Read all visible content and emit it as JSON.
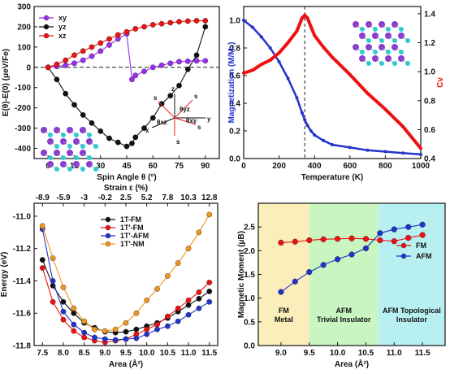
{
  "chart_data": [
    {
      "type": "line",
      "xlabel": "Spin Angle θ (°)",
      "ylabel": "E(θ)-E(0) (μeV/Fe)",
      "xlim": [
        -8,
        98
      ],
      "ylim": [
        -450,
        300
      ],
      "xticks": [
        0,
        15,
        30,
        45,
        60,
        75,
        90
      ],
      "yticks": [
        -400,
        -300,
        -200,
        -100,
        0,
        100,
        200,
        300
      ],
      "reference_line": 0,
      "legend_position": "top-left",
      "series": [
        {
          "name": "xy",
          "color": "#9b2ff0",
          "x": [
            0,
            5,
            10,
            15,
            20,
            25,
            30,
            35,
            40,
            45,
            48,
            50,
            55,
            60,
            65,
            70,
            75,
            80,
            85,
            90
          ],
          "y": [
            0,
            4,
            10,
            20,
            35,
            55,
            80,
            110,
            140,
            165,
            -60,
            -40,
            -20,
            0,
            10,
            20,
            28,
            30,
            32,
            32
          ]
        },
        {
          "name": "yz",
          "color": "#111111",
          "x": [
            0,
            5,
            10,
            15,
            20,
            25,
            30,
            35,
            40,
            45,
            48,
            50,
            55,
            60,
            65,
            70,
            75,
            80,
            85,
            90
          ],
          "y": [
            0,
            -60,
            -130,
            -185,
            -235,
            -275,
            -315,
            -350,
            -370,
            -390,
            -375,
            -345,
            -300,
            -250,
            -180,
            -140,
            -90,
            -10,
            60,
            200
          ]
        },
        {
          "name": "xz",
          "color": "#ee1111",
          "x": [
            0,
            5,
            10,
            15,
            20,
            25,
            30,
            35,
            40,
            45,
            50,
            55,
            60,
            65,
            70,
            75,
            80,
            85,
            90
          ],
          "y": [
            0,
            15,
            35,
            60,
            80,
            100,
            120,
            140,
            160,
            175,
            190,
            200,
            210,
            215,
            220,
            225,
            228,
            230,
            230
          ]
        }
      ],
      "inset_labels": [
        "z",
        "s",
        "s",
        "s",
        "s",
        "θyz",
        "θxz",
        "θxy",
        "x",
        "y"
      ]
    },
    {
      "type": "line",
      "xlabel": "Temperature (K)",
      "ylabel": "Magnetization (M/M₀)",
      "ylabel_right": "Cv",
      "xlim": [
        0,
        1000
      ],
      "ylim": [
        0,
        1.1
      ],
      "ylim_right": [
        0.4,
        1.45
      ],
      "xticks": [
        0,
        200,
        400,
        600,
        800,
        1000
      ],
      "yticks": [
        0.0,
        0.2,
        0.4,
        0.6,
        0.8,
        1.0
      ],
      "yticks_right": [
        0.4,
        0.6,
        0.8,
        1.0,
        1.2,
        1.4
      ],
      "vline_x": 345,
      "series": [
        {
          "name": "Magnetization",
          "color": "#2233cc",
          "axis": "left",
          "x": [
            0,
            50,
            100,
            150,
            200,
            250,
            300,
            330,
            345,
            360,
            380,
            400,
            450,
            500,
            600,
            700,
            800,
            900,
            1000
          ],
          "y": [
            1.0,
            0.95,
            0.88,
            0.8,
            0.7,
            0.58,
            0.44,
            0.33,
            0.28,
            0.24,
            0.2,
            0.17,
            0.13,
            0.1,
            0.08,
            0.06,
            0.05,
            0.04,
            0.03
          ]
        },
        {
          "name": "Cv",
          "color": "#ee1111",
          "axis": "right",
          "x": [
            0,
            50,
            100,
            150,
            200,
            250,
            300,
            330,
            345,
            360,
            380,
            400,
            450,
            500,
            600,
            700,
            800,
            900,
            1000
          ],
          "y": [
            0.99,
            1.01,
            1.05,
            1.08,
            1.13,
            1.2,
            1.28,
            1.37,
            1.39,
            1.37,
            1.31,
            1.25,
            1.17,
            1.1,
            0.98,
            0.85,
            0.74,
            0.62,
            0.47
          ]
        }
      ]
    },
    {
      "type": "line",
      "xlabel": "Area (Å²)",
      "ylabel": "Energy (eV)",
      "xlabel_top": "Strain ε (%)",
      "xlim": [
        7.3,
        11.7
      ],
      "ylim": [
        -11.8,
        -10.92
      ],
      "xticks": [
        7.5,
        8.0,
        8.5,
        9.0,
        9.5,
        10.0,
        10.5,
        11.0,
        11.5
      ],
      "yticks": [
        -11.8,
        -11.6,
        -11.4,
        -11.2,
        -11.0
      ],
      "xticks_top": [
        "-8.9",
        "-5.9",
        "-3",
        "-0.2",
        "2.5",
        "5.2",
        "7.8",
        "10.3",
        "12.8"
      ],
      "legend_position": "top-center",
      "series": [
        {
          "name": "1T-FM",
          "color": "#111111",
          "x": [
            7.5,
            7.75,
            8.0,
            8.25,
            8.5,
            8.75,
            9.0,
            9.25,
            9.5,
            9.75,
            10.0,
            10.25,
            10.5,
            10.75,
            11.0,
            11.25,
            11.5
          ],
          "y": [
            -11.27,
            -11.43,
            -11.53,
            -11.6,
            -11.66,
            -11.69,
            -11.715,
            -11.72,
            -11.715,
            -11.7,
            -11.68,
            -11.66,
            -11.63,
            -11.59,
            -11.55,
            -11.51,
            -11.465
          ]
        },
        {
          "name": "1T'-FM",
          "color": "#ee1111",
          "x": [
            7.5,
            7.75,
            8.0,
            8.25,
            8.5,
            8.75,
            9.0,
            9.25,
            9.5,
            9.75,
            10.0,
            10.25,
            10.5,
            10.75,
            11.0,
            11.25,
            11.5
          ],
          "y": [
            -11.32,
            -11.53,
            -11.64,
            -11.71,
            -11.75,
            -11.77,
            -11.78,
            -11.77,
            -11.76,
            -11.73,
            -11.7,
            -11.67,
            -11.62,
            -11.57,
            -11.52,
            -11.47,
            -11.41
          ]
        },
        {
          "name": "1T'-AFM",
          "color": "#2233cc",
          "x": [
            7.5,
            7.75,
            8.0,
            8.25,
            8.5,
            8.75,
            9.0,
            9.25,
            9.5,
            9.75,
            10.0,
            10.25,
            10.5,
            10.75,
            11.0,
            11.25,
            11.5
          ],
          "y": [
            -11.08,
            -11.4,
            -11.59,
            -11.67,
            -11.72,
            -11.75,
            -11.76,
            -11.765,
            -11.76,
            -11.755,
            -11.73,
            -11.7,
            -11.68,
            -11.65,
            -11.61,
            -11.57,
            -11.53
          ]
        },
        {
          "name": "1T'-NM",
          "color": "#f0961e",
          "x": [
            7.5,
            7.75,
            8.0,
            8.25,
            8.5,
            8.75,
            9.0,
            9.25,
            9.5,
            9.75,
            10.0,
            10.25,
            10.5,
            10.75,
            11.0,
            11.25,
            11.5
          ],
          "y": [
            -11.06,
            -11.26,
            -11.44,
            -11.57,
            -11.65,
            -11.7,
            -11.71,
            -11.7,
            -11.66,
            -11.6,
            -11.52,
            -11.45,
            -11.37,
            -11.29,
            -11.2,
            -11.1,
            -10.99
          ]
        }
      ]
    },
    {
      "type": "line",
      "xlabel": "Area (Å²)",
      "ylabel": "Magnetic Moment (μB)",
      "xlim": [
        8.6,
        11.9
      ],
      "ylim": [
        0.0,
        3.0
      ],
      "xticks": [
        9.0,
        9.5,
        10.0,
        10.5,
        11.0,
        11.5
      ],
      "yticks": [
        0.0,
        0.5,
        1.0,
        1.5,
        2.0,
        2.5
      ],
      "legend_position": "right",
      "regions": [
        {
          "label": "FM\nMetal",
          "from": 8.6,
          "to": 9.5,
          "color": "#fbeebb"
        },
        {
          "label": "AFM\nTrivial Insulator",
          "from": 9.5,
          "to": 10.72,
          "color": "#c8f5c0"
        },
        {
          "label": "AFM Topological\nInsulator",
          "from": 10.72,
          "to": 11.9,
          "color": "#b8f0f2"
        }
      ],
      "series": [
        {
          "name": "FM",
          "color": "#ee1111",
          "x": [
            9.0,
            9.25,
            9.5,
            9.75,
            10.0,
            10.25,
            10.5,
            10.75,
            11.0,
            11.25,
            11.5
          ],
          "y": [
            2.17,
            2.19,
            2.22,
            2.24,
            2.25,
            2.26,
            2.25,
            2.22,
            2.2,
            2.27,
            2.33
          ]
        },
        {
          "name": "AFM",
          "color": "#2233cc",
          "x": [
            9.0,
            9.25,
            9.5,
            9.75,
            10.0,
            10.25,
            10.5,
            10.75,
            11.0,
            11.25,
            11.5
          ],
          "y": [
            1.13,
            1.35,
            1.55,
            1.7,
            1.82,
            1.92,
            2.05,
            2.37,
            2.45,
            2.5,
            2.55
          ]
        }
      ]
    }
  ]
}
